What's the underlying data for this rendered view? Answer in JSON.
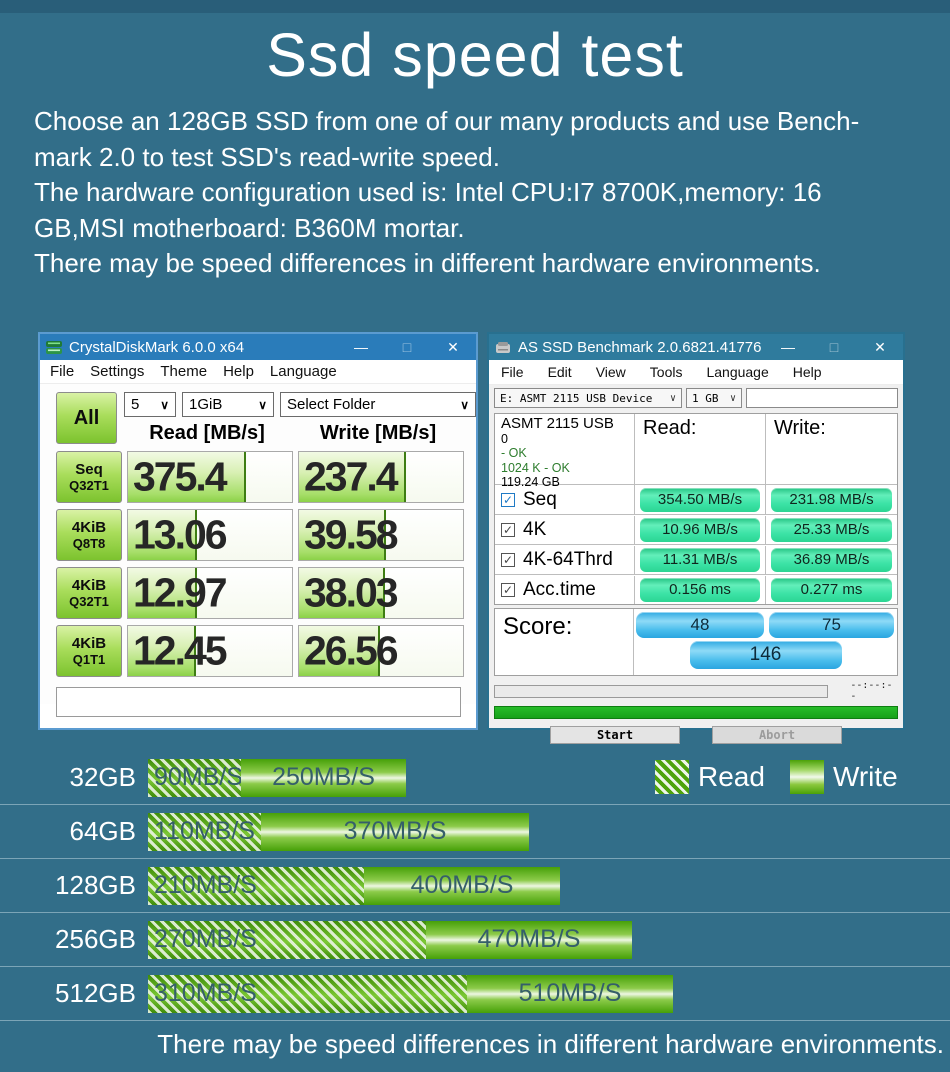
{
  "icons": {
    "chevron_down": "∨",
    "minimize": "—",
    "maximize": "□",
    "close": "✕",
    "check": "✓"
  },
  "colors": {
    "page_background": "#326e89",
    "cdm_titlebar": "#2a7cba",
    "asssd_titlebar": "#2f7b9d",
    "bar_green": "#55aa0e",
    "result_pill_green": "#3ce3a6",
    "score_pill_blue": "#49bdec"
  },
  "page": {
    "title": "Ssd speed test",
    "intro_lines": [
      "Choose an 128GB SSD from one of our many products and use Bench-",
      "mark 2.0 to test SSD's read-write speed.",
      "The hardware configuration used is: Intel CPU:I7 8700K,memory: 16",
      "GB,MSI motherboard: B360M mortar.",
      "There may be speed differences in different hardware environments."
    ],
    "footer_note": "There may be speed differences in different hardware environments."
  },
  "cdm": {
    "window_title": "CrystalDiskMark 6.0.0 x64",
    "menu": [
      "File",
      "Settings",
      "Theme",
      "Help",
      "Language"
    ],
    "all_button": "All",
    "test_count": "5",
    "test_size": "1GiB",
    "folder_select": "Select Folder",
    "read_header": "Read [MB/s]",
    "write_header": "Write [MB/s]",
    "rows": [
      {
        "type": "Seq",
        "queue": "Q32T1",
        "read": "375.4",
        "write": "237.4",
        "read_fill": 0.71,
        "write_fill": 0.64
      },
      {
        "type": "4KiB",
        "queue": "Q8T8",
        "read": "13.06",
        "write": "39.58",
        "read_fill": 0.41,
        "write_fill": 0.52
      },
      {
        "type": "4KiB",
        "queue": "Q32T1",
        "read": "12.97",
        "write": "38.03",
        "read_fill": 0.41,
        "write_fill": 0.51
      },
      {
        "type": "4KiB",
        "queue": "Q1T1",
        "read": "12.45",
        "write": "26.56",
        "read_fill": 0.4,
        "write_fill": 0.48
      }
    ]
  },
  "asssd": {
    "window_title": "AS SSD Benchmark 2.0.6821.41776",
    "menu": [
      "File",
      "Edit",
      "View",
      "Tools",
      "Language",
      "Help"
    ],
    "device_select": "E: ASMT 2115 USB Device",
    "size_select": "1 GB",
    "info_lines": [
      "ASMT 2115 USB",
      "0",
      " - OK",
      "1024 K - OK",
      "119.24 GB"
    ],
    "read_header": "Read:",
    "write_header": "Write:",
    "rows": [
      {
        "label": "Seq",
        "read": "354.50 MB/s",
        "write": "231.98 MB/s"
      },
      {
        "label": "4K",
        "read": "10.96 MB/s",
        "write": "25.33 MB/s"
      },
      {
        "label": "4K-64Thrd",
        "read": "11.31 MB/s",
        "write": "36.89 MB/s"
      },
      {
        "label": "Acc.time",
        "read": "0.156 ms",
        "write": "0.277 ms"
      }
    ],
    "score_label": "Score:",
    "scores": {
      "read": "48",
      "write": "75",
      "total": "146"
    },
    "time_placeholder": "--:--:--",
    "start_button": "Start",
    "abort_button": "Abort"
  },
  "chart_data": {
    "type": "bar",
    "orientation": "horizontal",
    "title": "",
    "categories": [
      "32GB",
      "64GB",
      "128GB",
      "256GB",
      "512GB"
    ],
    "series": [
      {
        "name": "Read",
        "unit": "MB/S",
        "style": "hatched-green",
        "values": [
          90,
          110,
          210,
          270,
          310
        ]
      },
      {
        "name": "Write",
        "unit": "MB/S",
        "style": "glossy-green",
        "values": [
          250,
          370,
          400,
          470,
          510
        ]
      }
    ],
    "bar_labels": {
      "read": [
        "90MB/S",
        "110MB/S",
        "210MB/S",
        "270MB/S",
        "310MB/S"
      ],
      "write": [
        "250MB/S",
        "370MB/S",
        "400MB/S",
        "470MB/S",
        "510MB/S"
      ]
    },
    "legend": {
      "position": "top-right",
      "read_label": "Read",
      "write_label": "Write"
    },
    "axis": "none",
    "grid": false
  }
}
